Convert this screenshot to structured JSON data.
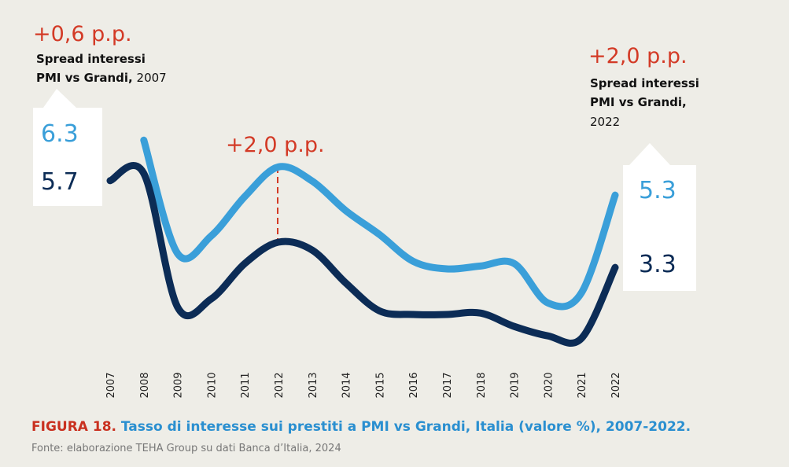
{
  "chart_data": {
    "type": "line",
    "categories": [
      "2007",
      "2008",
      "2009",
      "2010",
      "2011",
      "2012",
      "2013",
      "2014",
      "2015",
      "2016",
      "2017",
      "2018",
      "2019",
      "2020",
      "2021",
      "2022"
    ],
    "series": [
      {
        "name": "PMI",
        "color": "#3a9fd9",
        "values": [
          null,
          6.82,
          3.69,
          4.17,
          5.26,
          6.08,
          5.69,
          4.87,
          4.21,
          3.47,
          3.26,
          3.34,
          3.41,
          2.32,
          2.6,
          5.3
        ]
      },
      {
        "name": "Grandi",
        "color": "#0c2c56",
        "values": [
          5.7,
          5.9,
          2.21,
          2.43,
          3.41,
          4.0,
          3.78,
          2.87,
          2.1,
          2.0,
          2.0,
          2.04,
          1.67,
          1.41,
          1.34,
          3.3
        ]
      }
    ],
    "ylim": [
      1,
      7
    ],
    "left_labels": [
      "6.3",
      "5.7"
    ],
    "right_labels": [
      "5.3",
      "3.3"
    ],
    "annotations": {
      "left_spread": "+0,6 p.p.",
      "left_note_bold": "Spread interessi",
      "left_note_bold2": "PMI vs Grandi,",
      "left_note_year": "2007",
      "mid_spread": "+2,0 p.p.",
      "right_spread": "+2,0 p.p.",
      "right_note_bold": "Spread interessi",
      "right_note_bold2": "PMI vs Grandi,",
      "right_note_year": "2022"
    },
    "figure_label": "FIGURA 18.",
    "title": "Tasso di interesse sui prestiti a PMI vs Grandi, Italia (valore %), 2007-2022.",
    "source": "Fonte: elaborazione TEHA Group su dati Banca d’Italia, 2024"
  }
}
